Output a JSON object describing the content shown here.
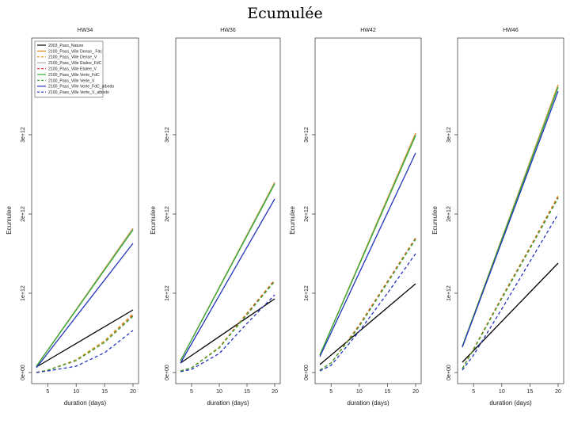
{
  "page": {
    "title": "Ecumulée"
  },
  "chart_data": [
    {
      "type": "line",
      "title": "HW34",
      "xlabel": "duration (days)",
      "ylabel": "Ecumulee",
      "xlim": [
        3,
        20
      ],
      "ylim": [
        0,
        4000000000000.0
      ],
      "xticks": [
        5,
        10,
        15,
        20
      ],
      "yticks": [
        0,
        1000000000000.0,
        2000000000000.0,
        3000000000000.0
      ],
      "ytick_labels": [
        "0e+00",
        "1e+12",
        "2e+12",
        "3e+12"
      ],
      "legend": "top-left",
      "series": [
        {
          "name": "2003_Pass_Nature",
          "color": "#000000",
          "dashed": false,
          "x": [
            3,
            20
          ],
          "y": [
            70000000000.0,
            790000000000.0
          ]
        },
        {
          "name": "2100_Pass_Ville Dense_ Fdc",
          "color": "#dd8800",
          "dashed": false,
          "x": [
            3,
            20
          ],
          "y": [
            80000000000.0,
            1820000000000.0
          ]
        },
        {
          "name": "2100_Pass_Ville Dense_V",
          "color": "#dd8800",
          "dashed": true,
          "x": [
            3,
            5,
            10,
            15,
            20
          ],
          "y": [
            0.0,
            30000000000.0,
            160000000000.0,
            400000000000.0,
            740000000000.0
          ]
        },
        {
          "name": "2100_Pass_Ville Etalee_FdC",
          "color": "#aaaaaa",
          "dashed": false,
          "x": [
            3,
            20
          ],
          "y": [
            80000000000.0,
            1810000000000.0
          ]
        },
        {
          "name": "2100_Pass_Ville Etalee_V",
          "color": "#dd3333",
          "dashed": true,
          "x": [
            3,
            5,
            10,
            15,
            20
          ],
          "y": [
            0.0,
            30000000000.0,
            150000000000.0,
            380000000000.0,
            720000000000.0
          ]
        },
        {
          "name": "2100_Pass_Ville Verte_FdC",
          "color": "#33aa33",
          "dashed": false,
          "x": [
            3,
            20
          ],
          "y": [
            80000000000.0,
            1800000000000.0
          ]
        },
        {
          "name": "2100_Pass_Ville Verte_V",
          "color": "#33aa33",
          "dashed": true,
          "x": [
            3,
            5,
            10,
            15,
            20
          ],
          "y": [
            0.0,
            30000000000.0,
            150000000000.0,
            380000000000.0,
            710000000000.0
          ]
        },
        {
          "name": "2100_Pass_Ville Verte_FdC_albedo",
          "color": "#2233bb",
          "dashed": false,
          "x": [
            3,
            20
          ],
          "y": [
            60000000000.0,
            1630000000000.0
          ]
        },
        {
          "name": "2100_Pass_Ville Verte_V_albedo",
          "color": "#2233bb",
          "dashed": true,
          "x": [
            3,
            5,
            10,
            15,
            20
          ],
          "y": [
            0.0,
            20000000000.0,
            80000000000.0,
            250000000000.0,
            530000000000.0
          ]
        }
      ]
    },
    {
      "type": "line",
      "title": "HW36",
      "xlabel": "duration (days)",
      "ylabel": "Ecumulee",
      "xlim": [
        3,
        20
      ],
      "ylim": [
        0,
        4000000000000.0
      ],
      "xticks": [
        5,
        10,
        15,
        20
      ],
      "yticks": [
        0,
        1000000000000.0,
        2000000000000.0,
        3000000000000.0
      ],
      "ytick_labels": [
        "0e+00",
        "1e+12",
        "2e+12",
        "3e+12"
      ],
      "series": [
        {
          "name": "2003_Pass_Nature",
          "color": "#000000",
          "dashed": false,
          "x": [
            3,
            20
          ],
          "y": [
            120000000000.0,
            930000000000.0
          ]
        },
        {
          "name": "2100_Pass_Ville Dense_ Fdc",
          "color": "#dd8800",
          "dashed": false,
          "x": [
            3,
            20
          ],
          "y": [
            150000000000.0,
            2400000000000.0
          ]
        },
        {
          "name": "2100_Pass_Ville Dense_V",
          "color": "#dd8800",
          "dashed": true,
          "x": [
            3,
            5,
            10,
            15,
            20
          ],
          "y": [
            20000000000.0,
            60000000000.0,
            320000000000.0,
            750000000000.0,
            1170000000000.0
          ]
        },
        {
          "name": "2100_Pass_Ville Etalee_FdC",
          "color": "#aaaaaa",
          "dashed": false,
          "x": [
            3,
            20
          ],
          "y": [
            150000000000.0,
            2390000000000.0
          ]
        },
        {
          "name": "2100_Pass_Ville Etalee_V",
          "color": "#dd3333",
          "dashed": true,
          "x": [
            3,
            5,
            10,
            15,
            20
          ],
          "y": [
            20000000000.0,
            60000000000.0,
            310000000000.0,
            740000000000.0,
            1160000000000.0
          ]
        },
        {
          "name": "2100_Pass_Ville Verte_FdC",
          "color": "#33aa33",
          "dashed": false,
          "x": [
            3,
            20
          ],
          "y": [
            150000000000.0,
            2380000000000.0
          ]
        },
        {
          "name": "2100_Pass_Ville Verte_V",
          "color": "#33aa33",
          "dashed": true,
          "x": [
            3,
            5,
            10,
            15,
            20
          ],
          "y": [
            20000000000.0,
            60000000000.0,
            310000000000.0,
            730000000000.0,
            1150000000000.0
          ]
        },
        {
          "name": "2100_Pass_Ville Verte_FdC_albedo",
          "color": "#2233bb",
          "dashed": false,
          "x": [
            3,
            20
          ],
          "y": [
            120000000000.0,
            2190000000000.0
          ]
        },
        {
          "name": "2100_Pass_Ville Verte_V_albedo",
          "color": "#2233bb",
          "dashed": true,
          "x": [
            3,
            5,
            10,
            15,
            20
          ],
          "y": [
            10000000000.0,
            40000000000.0,
            240000000000.0,
            620000000000.0,
            980000000000.0
          ]
        }
      ]
    },
    {
      "type": "line",
      "title": "HW42",
      "xlabel": "duration (days)",
      "ylabel": "Ecumulee",
      "xlim": [
        3,
        20
      ],
      "ylim": [
        0,
        4000000000000.0
      ],
      "xticks": [
        5,
        10,
        15,
        20
      ],
      "yticks": [
        0,
        1000000000000.0,
        2000000000000.0,
        3000000000000.0
      ],
      "ytick_labels": [
        "0e+00",
        "1e+12",
        "2e+12",
        "3e+12"
      ],
      "series": [
        {
          "name": "2003_Pass_Nature",
          "color": "#000000",
          "dashed": false,
          "x": [
            3,
            20
          ],
          "y": [
            100000000000.0,
            1120000000000.0
          ]
        },
        {
          "name": "2100_Pass_Ville Dense_ Fdc",
          "color": "#dd8800",
          "dashed": false,
          "x": [
            3,
            20
          ],
          "y": [
            220000000000.0,
            3020000000000.0
          ]
        },
        {
          "name": "2100_Pass_Ville Dense_V",
          "color": "#dd8800",
          "dashed": true,
          "x": [
            3,
            5,
            10,
            15,
            20
          ],
          "y": [
            30000000000.0,
            120000000000.0,
            600000000000.0,
            1150000000000.0,
            1700000000000.0
          ]
        },
        {
          "name": "2100_Pass_Ville Etalee_FdC",
          "color": "#aaaaaa",
          "dashed": false,
          "x": [
            3,
            20
          ],
          "y": [
            220000000000.0,
            3000000000000.0
          ]
        },
        {
          "name": "2100_Pass_Ville Etalee_V",
          "color": "#dd3333",
          "dashed": true,
          "x": [
            3,
            5,
            10,
            15,
            20
          ],
          "y": [
            30000000000.0,
            120000000000.0,
            590000000000.0,
            1140000000000.0,
            1690000000000.0
          ]
        },
        {
          "name": "2100_Pass_Ville Verte_FdC",
          "color": "#33aa33",
          "dashed": false,
          "x": [
            3,
            20
          ],
          "y": [
            220000000000.0,
            2990000000000.0
          ]
        },
        {
          "name": "2100_Pass_Ville Verte_V",
          "color": "#33aa33",
          "dashed": true,
          "x": [
            3,
            5,
            10,
            15,
            20
          ],
          "y": [
            30000000000.0,
            120000000000.0,
            580000000000.0,
            1130000000000.0,
            1680000000000.0
          ]
        },
        {
          "name": "2100_Pass_Ville Verte_FdC_albedo",
          "color": "#2233bb",
          "dashed": false,
          "x": [
            3,
            20
          ],
          "y": [
            200000000000.0,
            2770000000000.0
          ]
        },
        {
          "name": "2100_Pass_Ville Verte_V_albedo",
          "color": "#2233bb",
          "dashed": true,
          "x": [
            3,
            5,
            10,
            15,
            20
          ],
          "y": [
            20000000000.0,
            90000000000.0,
            520000000000.0,
            1000000000000.0,
            1500000000000.0
          ]
        }
      ]
    },
    {
      "type": "line",
      "title": "HW46",
      "xlabel": "duration (days)",
      "ylabel": "Ecumulee",
      "xlim": [
        3,
        20
      ],
      "ylim": [
        0,
        4000000000000.0
      ],
      "xticks": [
        5,
        10,
        15,
        20
      ],
      "yticks": [
        0,
        1000000000000.0,
        2000000000000.0,
        3000000000000.0
      ],
      "ytick_labels": [
        "0e+00",
        "1e+12",
        "2e+12",
        "3e+12"
      ],
      "series": [
        {
          "name": "2003_Pass_Nature",
          "color": "#000000",
          "dashed": false,
          "x": [
            3,
            20
          ],
          "y": [
            130000000000.0,
            1380000000000.0
          ]
        },
        {
          "name": "2100_Pass_Ville Dense_ Fdc",
          "color": "#dd8800",
          "dashed": false,
          "x": [
            3,
            20
          ],
          "y": [
            330000000000.0,
            3630000000000.0
          ]
        },
        {
          "name": "2100_Pass_Ville Dense_V",
          "color": "#dd8800",
          "dashed": true,
          "x": [
            3,
            5,
            10,
            15,
            20
          ],
          "y": [
            50000000000.0,
            300000000000.0,
            950000000000.0,
            1580000000000.0,
            2230000000000.0
          ]
        },
        {
          "name": "2100_Pass_Ville Etalee_FdC",
          "color": "#aaaaaa",
          "dashed": false,
          "x": [
            3,
            20
          ],
          "y": [
            330000000000.0,
            3610000000000.0
          ]
        },
        {
          "name": "2100_Pass_Ville Etalee_V",
          "color": "#dd3333",
          "dashed": true,
          "x": [
            3,
            5,
            10,
            15,
            20
          ],
          "y": [
            50000000000.0,
            290000000000.0,
            940000000000.0,
            1570000000000.0,
            2210000000000.0
          ]
        },
        {
          "name": "2100_Pass_Ville Verte_FdC",
          "color": "#33aa33",
          "dashed": false,
          "x": [
            3,
            20
          ],
          "y": [
            330000000000.0,
            3600000000000.0
          ]
        },
        {
          "name": "2100_Pass_Ville Verte_V",
          "color": "#33aa33",
          "dashed": true,
          "x": [
            3,
            5,
            10,
            15,
            20
          ],
          "y": [
            50000000000.0,
            290000000000.0,
            930000000000.0,
            1560000000000.0,
            2200000000000.0
          ]
        },
        {
          "name": "2100_Pass_Ville Verte_FdC_albedo",
          "color": "#2233bb",
          "dashed": false,
          "x": [
            3,
            20
          ],
          "y": [
            320000000000.0,
            3550000000000.0
          ]
        },
        {
          "name": "2100_Pass_Ville Verte_V_albedo",
          "color": "#2233bb",
          "dashed": true,
          "x": [
            3,
            5,
            10,
            15,
            20
          ],
          "y": [
            30000000000.0,
            220000000000.0,
            800000000000.0,
            1400000000000.0,
            2000000000000.0
          ]
        }
      ]
    }
  ]
}
